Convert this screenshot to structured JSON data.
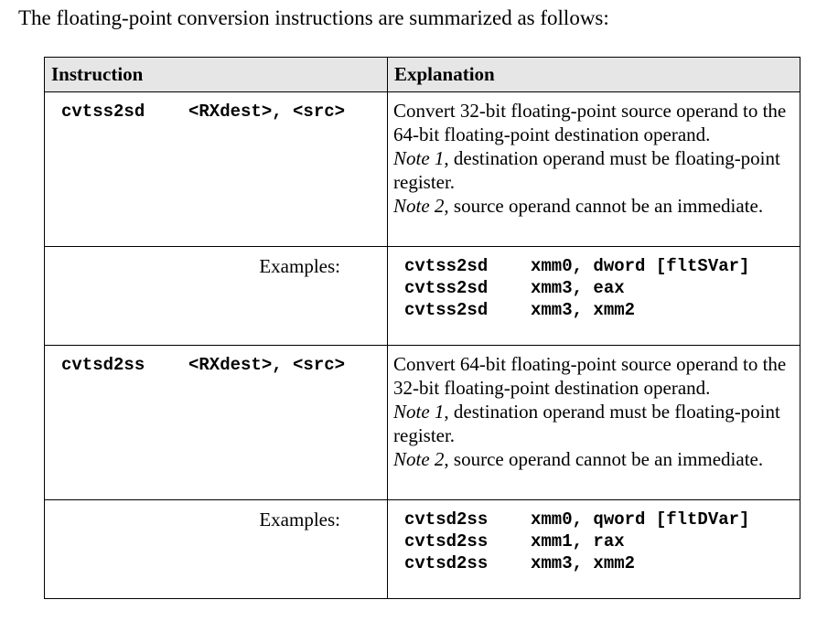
{
  "intro": "The floating-point conversion instructions are summarized as follows:",
  "table": {
    "headers": [
      "Instruction",
      "Explanation"
    ],
    "examples_label": "Examples:",
    "rows": [
      {
        "mnemonic": "cvtss2sd",
        "operands": "<RXdest>, <src>",
        "explanation": {
          "line1": "Convert 32-bit floating-point source operand to the 64-bit floating-point destination operand.",
          "note1_label": "Note 1",
          "note1_text": ", destination operand must be floating-point register.",
          "note2_label": "Note 2",
          "note2_text": ", source operand cannot be an immediate."
        },
        "examples": [
          {
            "mnemonic": "cvtss2sd",
            "operands": "xmm0, dword [fltSVar]"
          },
          {
            "mnemonic": "cvtss2sd",
            "operands": "xmm3, eax"
          },
          {
            "mnemonic": "cvtss2sd",
            "operands": "xmm3, xmm2"
          }
        ]
      },
      {
        "mnemonic": "cvtsd2ss",
        "operands": "<RXdest>, <src>",
        "explanation": {
          "line1": "Convert 64-bit floating-point source operand to the 32-bit floating-point destination operand.",
          "note1_label": "Note 1",
          "note1_text": ", destination operand must be floating-point register.",
          "note2_label": "Note 2",
          "note2_text": ", source operand cannot be an immediate."
        },
        "examples": [
          {
            "mnemonic": "cvtsd2ss",
            "operands": "xmm0, qword [fltDVar]"
          },
          {
            "mnemonic": "cvtsd2ss",
            "operands": "xmm1, rax"
          },
          {
            "mnemonic": "cvtsd2ss",
            "operands": "xmm3, xmm2"
          }
        ]
      }
    ]
  }
}
